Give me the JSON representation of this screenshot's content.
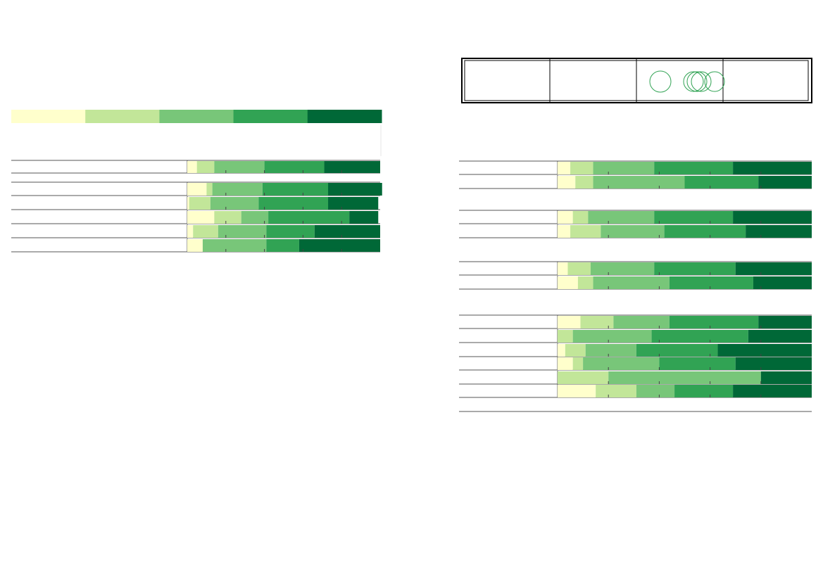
{
  "palette": [
    "#ffffcc",
    "#c2e699",
    "#78c679",
    "#31a354",
    "#006837"
  ],
  "legend_circle_color": "#31a354",
  "chart_data": [
    {
      "type": "bar",
      "stacked": true,
      "orientation": "horizontal",
      "categories": [
        "",
        "",
        "",
        "",
        "",
        ""
      ],
      "series": [
        {
          "values": [
            5,
            10,
            1,
            14,
            3,
            8
          ]
        },
        {
          "values": [
            9,
            3,
            11,
            14,
            13,
            0
          ]
        },
        {
          "values": [
            26,
            26,
            25,
            14,
            25,
            33
          ]
        },
        {
          "values": [
            31,
            34,
            36,
            42,
            25,
            17
          ]
        },
        {
          "values": [
            29,
            28,
            26,
            15,
            34,
            42
          ]
        }
      ],
      "xlim": [
        0,
        100
      ],
      "grid": true
    },
    {
      "type": "bar",
      "stacked": true,
      "orientation": "horizontal",
      "categories": [
        "",
        "",
        "",
        "",
        "",
        "",
        "",
        "",
        "",
        "",
        "",
        "",
        "",
        "",
        "",
        ""
      ],
      "series": [
        {
          "values": [
            5,
            7,
            6,
            5,
            4,
            8,
            9,
            0,
            3,
            6,
            0,
            0,
            0,
            0,
            0,
            15
          ]
        },
        {
          "values": [
            9,
            7,
            6,
            12,
            9,
            6,
            13,
            6,
            8,
            4,
            0,
            0,
            0,
            0,
            20,
            16
          ]
        },
        {
          "values": [
            24,
            36,
            26,
            25,
            25,
            30,
            22,
            31,
            20,
            30,
            0,
            0,
            0,
            0,
            60,
            15
          ]
        },
        {
          "values": [
            31,
            29,
            31,
            32,
            32,
            33,
            35,
            38,
            32,
            30,
            0,
            0,
            0,
            0,
            0,
            23
          ]
        },
        {
          "values": [
            31,
            21,
            31,
            26,
            30,
            23,
            21,
            25,
            37,
            30,
            0,
            0,
            0,
            0,
            20,
            31
          ]
        }
      ],
      "xlim": [
        0,
        100
      ],
      "grid": true
    }
  ]
}
